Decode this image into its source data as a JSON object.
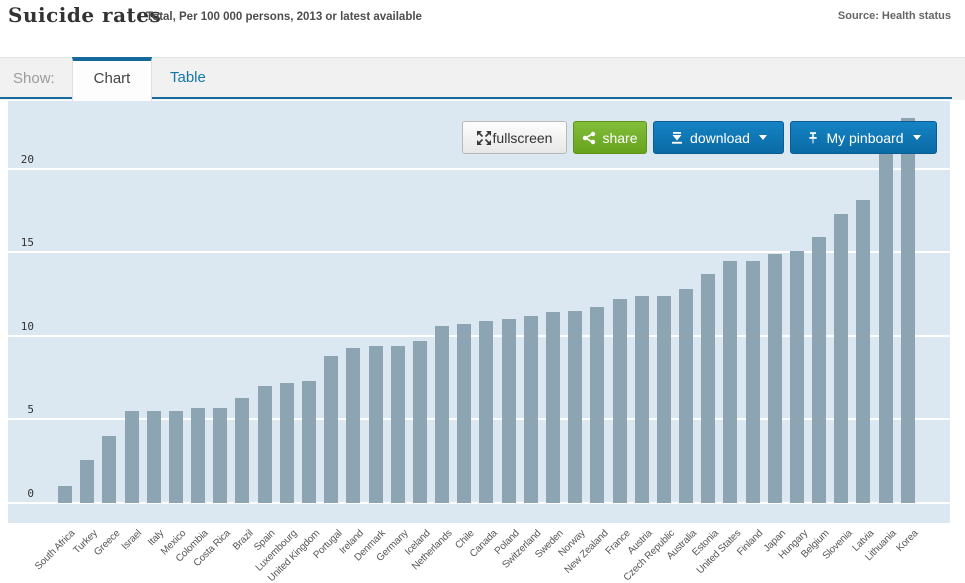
{
  "header": {
    "title": "Suicide rates",
    "subtitle": "Total, Per 100 000 persons, 2013 or latest available",
    "source": "Source: Health status"
  },
  "toolbar": {
    "show_label": "Show:",
    "tabs": [
      {
        "label": "Chart",
        "active": true
      },
      {
        "label": "Table",
        "active": false
      }
    ],
    "buttons": {
      "fullscreen": {
        "label": "fullscreen",
        "icon": "fullscreen-expand-icon"
      },
      "share": {
        "label": "share",
        "icon": "share-icon"
      },
      "download": {
        "label": "download",
        "icon": "download-icon"
      },
      "pinboard": {
        "label": "My pinboard",
        "icon": "pin-icon"
      }
    }
  },
  "colors": {
    "accent_blue": "#0e76b4",
    "tab_border_blue": "#15689a",
    "separator_blue": "#1a6b9d",
    "share_green": "#6fa924",
    "chart_background": "#dce8f1",
    "bar_color": "#8da4b2",
    "gridline": "#ffffff"
  },
  "chart_data": {
    "type": "bar",
    "title": "Suicide rates",
    "subtitle": "Total, Per 100 000 persons, 2013 or latest available",
    "xlabel": "",
    "ylabel": "Per 100 000 persons",
    "ylim": [
      0,
      24
    ],
    "yticks": [
      0,
      5,
      10,
      15,
      20
    ],
    "grid": true,
    "legend": false,
    "categories": [
      "South Africa",
      "Turkey",
      "Greece",
      "Israel",
      "Italy",
      "Mexico",
      "Colombia",
      "Costa Rica",
      "Brazil",
      "Spain",
      "Luxembourg",
      "United Kingdom",
      "Portugal",
      "Ireland",
      "Denmark",
      "Germany",
      "Iceland",
      "Netherlands",
      "Chile",
      "Canada",
      "Poland",
      "Switzerland",
      "Sweden",
      "Norway",
      "New Zealand",
      "France",
      "Austria",
      "Czech Republic",
      "Australia",
      "Estonia",
      "United States",
      "Finland",
      "Japan",
      "Hungary",
      "Belgium",
      "Slovenia",
      "Latvia",
      "Lithuania",
      "Korea"
    ],
    "values": [
      1.0,
      2.6,
      4.0,
      5.5,
      5.5,
      5.5,
      5.7,
      5.7,
      6.3,
      7.0,
      7.2,
      7.3,
      8.8,
      9.3,
      9.4,
      9.4,
      9.7,
      10.6,
      10.7,
      10.9,
      11.0,
      11.2,
      11.4,
      11.5,
      11.7,
      12.2,
      12.4,
      12.4,
      12.8,
      13.7,
      14.5,
      14.5,
      14.9,
      15.1,
      15.9,
      17.3,
      18.1,
      22.2,
      23.0
    ]
  }
}
